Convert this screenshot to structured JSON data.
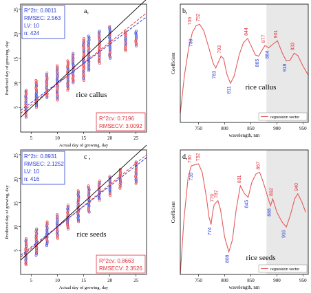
{
  "colors": {
    "red": "#e0303a",
    "blue": "#2a3fd4",
    "purple": "#7a3fa0",
    "curve": "#e45a5a",
    "black": "#000000",
    "shade": "#d9d9d9"
  },
  "chart_data": [
    {
      "type": "scatter",
      "panel_label": "a,",
      "xlabel": "Actual day of growing, day",
      "ylabel": "Predicted day of growing, day",
      "xlim": [
        3,
        27
      ],
      "ylim": [
        0,
        26
      ],
      "xticks": [
        "5",
        "10",
        "15",
        "20",
        "25"
      ],
      "yticks": [
        "5",
        "10",
        "15",
        "20",
        "25"
      ],
      "annotation": "rice callus",
      "stats_box": [
        "R^2tr: 0.8011",
        "RMSEC: 2.563",
        "LV: 10",
        "n: 424"
      ],
      "cv_box": [
        "R^2cv: 0.7196",
        "RMSECV: 3.0092"
      ],
      "columns": [
        {
          "x": 4,
          "ymin": 3.0,
          "ymax": 8.5
        },
        {
          "x": 6,
          "ymin": 5.0,
          "ymax": 10.5
        },
        {
          "x": 8,
          "ymin": 7.0,
          "ymax": 12.0
        },
        {
          "x": 10,
          "ymin": 6.5,
          "ymax": 13.5
        },
        {
          "x": 12,
          "ymin": 8.5,
          "ymax": 14.5
        },
        {
          "x": 13,
          "ymin": 10.0,
          "ymax": 16.0
        },
        {
          "x": 15,
          "ymin": 10.5,
          "ymax": 19.0
        },
        {
          "x": 16,
          "ymin": 12.5,
          "ymax": 19.5
        },
        {
          "x": 18,
          "ymin": 14.0,
          "ymax": 20.5
        },
        {
          "x": 20,
          "ymin": 15.0,
          "ymax": 21.5
        },
        {
          "x": 23,
          "ymin": 16.5,
          "ymax": 20.5
        },
        {
          "x": 25,
          "ymin": 17.5,
          "ymax": 20.5
        }
      ],
      "lines": {
        "ideal": [
          [
            3,
            3
          ],
          [
            27,
            27
          ]
        ],
        "fit_tr": [
          [
            3,
            3.8
          ],
          [
            27,
            24.2
          ]
        ],
        "fit_cv": [
          [
            3,
            4.4
          ],
          [
            27,
            23.4
          ]
        ]
      }
    },
    {
      "type": "line",
      "panel_label": "b,",
      "xlabel": "wavelength, nm",
      "ylabel": "Coefficient",
      "xlim": [
        715,
        960
      ],
      "ylim": [
        -1,
        1
      ],
      "xticks": [
        "750",
        "800",
        "850",
        "900",
        "950"
      ],
      "shaded_range": [
        880,
        960
      ],
      "annotation": "rice callus",
      "legend": "regression vector",
      "curve": [
        [
          715,
          -0.85
        ],
        [
          723,
          -0.2
        ],
        [
          731,
          0.25
        ],
        [
          738,
          0.52
        ],
        [
          745,
          0.63
        ],
        [
          752,
          0.66
        ],
        [
          760,
          0.55
        ],
        [
          770,
          0.25
        ],
        [
          778,
          0.0
        ],
        [
          783,
          -0.08
        ],
        [
          788,
          0.02
        ],
        [
          793,
          0.12
        ],
        [
          798,
          0.08
        ],
        [
          804,
          -0.18
        ],
        [
          811,
          -0.34
        ],
        [
          818,
          -0.22
        ],
        [
          828,
          0.15
        ],
        [
          836,
          0.35
        ],
        [
          844,
          0.42
        ],
        [
          852,
          0.27
        ],
        [
          859,
          0.14
        ],
        [
          865,
          0.12
        ],
        [
          870,
          0.2
        ],
        [
          877,
          0.3
        ],
        [
          884,
          0.26
        ],
        [
          892,
          0.32
        ],
        [
          901,
          0.38
        ],
        [
          910,
          0.18
        ],
        [
          918,
          0.04
        ],
        [
          925,
          0.05
        ],
        [
          933,
          0.17
        ],
        [
          940,
          0.13
        ],
        [
          950,
          -0.05
        ],
        [
          960,
          -0.2
        ]
      ],
      "peak_labels": [
        {
          "x": 736,
          "y": 0.6,
          "text": "736",
          "color": "red"
        },
        {
          "x": 752,
          "y": 0.66,
          "text": "752",
          "color": "red"
        },
        {
          "x": 738,
          "y": 0.46,
          "text": "738",
          "color": "blue"
        },
        {
          "x": 783,
          "y": -0.08,
          "text": "783",
          "color": "blue"
        },
        {
          "x": 793,
          "y": 0.12,
          "text": "793",
          "color": "red"
        },
        {
          "x": 811,
          "y": -0.34,
          "text": "811",
          "color": "blue"
        },
        {
          "x": 844,
          "y": 0.42,
          "text": "844",
          "color": "red"
        },
        {
          "x": 865,
          "y": 0.12,
          "text": "865",
          "color": "blue"
        },
        {
          "x": 877,
          "y": 0.3,
          "text": "877",
          "color": "red"
        },
        {
          "x": 884,
          "y": 0.26,
          "text": "884",
          "color": "blue"
        },
        {
          "x": 901,
          "y": 0.38,
          "text": "901",
          "color": "red"
        },
        {
          "x": 918,
          "y": 0.04,
          "text": "918",
          "color": "blue"
        },
        {
          "x": 933,
          "y": 0.17,
          "text": "933",
          "color": "red"
        }
      ]
    },
    {
      "type": "scatter",
      "panel_label": "c ,",
      "xlabel": "Actual day of growing, day",
      "ylabel": "Predicted day of growing, day",
      "xlim": [
        3,
        27
      ],
      "ylim": [
        0,
        26
      ],
      "xticks": [
        "5",
        "10",
        "15",
        "20",
        "25"
      ],
      "yticks": [
        "5",
        "10",
        "15",
        "20",
        "25"
      ],
      "annotation": "rice seeds",
      "stats_box": [
        "R^2tr: 0.8931",
        "RMSEC: 2.1252",
        "LV: 10",
        "n: 416"
      ],
      "cv_box": [
        "R^2cv: 0.8663",
        "RMSECV: 2.3526"
      ],
      "columns": [
        {
          "x": 4,
          "ymin": 2.0,
          "ymax": 7.5
        },
        {
          "x": 6,
          "ymin": 4.0,
          "ymax": 9.5
        },
        {
          "x": 8,
          "ymin": 6.0,
          "ymax": 11.0
        },
        {
          "x": 10,
          "ymin": 7.5,
          "ymax": 12.5
        },
        {
          "x": 12,
          "ymin": 9.5,
          "ymax": 14.5
        },
        {
          "x": 14,
          "ymin": 11.0,
          "ymax": 17.5
        },
        {
          "x": 16,
          "ymin": 13.0,
          "ymax": 18.5
        },
        {
          "x": 18,
          "ymin": 15.5,
          "ymax": 19.5
        },
        {
          "x": 20,
          "ymin": 16.5,
          "ymax": 20.5
        },
        {
          "x": 22,
          "ymin": 18.0,
          "ymax": 22.0
        },
        {
          "x": 25,
          "ymin": 19.0,
          "ymax": 23.5
        }
      ],
      "lines": {
        "ideal": [
          [
            3,
            3
          ],
          [
            27,
            27
          ]
        ],
        "fit_tr": [
          [
            3,
            3.6
          ],
          [
            27,
            25.0
          ]
        ],
        "fit_cv": [
          [
            3,
            4.0
          ],
          [
            27,
            24.4
          ]
        ]
      }
    },
    {
      "type": "line",
      "panel_label": "d,",
      "xlabel": "wavelength, nm",
      "ylabel": "Coefficient",
      "xlim": [
        715,
        960
      ],
      "ylim": [
        -1.5,
        1
      ],
      "xticks": [
        "750",
        "800",
        "850",
        "900",
        "950"
      ],
      "shaded_range": [
        880,
        960
      ],
      "annotation": "rice seeds",
      "legend": "regression vector",
      "curve": [
        [
          715,
          -1.5
        ],
        [
          722,
          -0.4
        ],
        [
          730,
          0.45
        ],
        [
          736,
          0.68
        ],
        [
          742,
          0.7
        ],
        [
          750,
          0.72
        ],
        [
          757,
          0.55
        ],
        [
          765,
          0.05
        ],
        [
          770,
          -0.35
        ],
        [
          774,
          -0.5
        ],
        [
          777,
          -0.25
        ],
        [
          780,
          -0.1
        ],
        [
          784,
          -0.05
        ],
        [
          787,
          -0.02
        ],
        [
          792,
          -0.2
        ],
        [
          800,
          -0.75
        ],
        [
          808,
          -1.05
        ],
        [
          815,
          -0.8
        ],
        [
          822,
          -0.2
        ],
        [
          830,
          0.28
        ],
        [
          838,
          0.12
        ],
        [
          845,
          0.05
        ],
        [
          852,
          0.35
        ],
        [
          860,
          0.52
        ],
        [
          867,
          0.55
        ],
        [
          874,
          0.35
        ],
        [
          884,
          0.0
        ],
        [
          888,
          -0.12
        ],
        [
          892,
          0.02
        ],
        [
          900,
          -0.25
        ],
        [
          910,
          -0.45
        ],
        [
          918,
          -0.55
        ],
        [
          926,
          -0.3
        ],
        [
          934,
          0.02
        ],
        [
          940,
          0.12
        ],
        [
          948,
          -0.05
        ],
        [
          955,
          -0.25
        ]
      ],
      "peak_labels": [
        {
          "x": 736,
          "y": 0.68,
          "text": "736",
          "color": "red"
        },
        {
          "x": 752,
          "y": 0.72,
          "text": "752",
          "color": "red"
        },
        {
          "x": 739,
          "y": 0.6,
          "text": "739",
          "color": "blue"
        },
        {
          "x": 774,
          "y": -0.5,
          "text": "774",
          "color": "blue"
        },
        {
          "x": 779,
          "y": -0.1,
          "text": "779",
          "color": "red"
        },
        {
          "x": 787,
          "y": -0.02,
          "text": "787",
          "color": "red"
        },
        {
          "x": 808,
          "y": -1.05,
          "text": "808",
          "color": "blue"
        },
        {
          "x": 831,
          "y": 0.28,
          "text": "831",
          "color": "red"
        },
        {
          "x": 845,
          "y": 0.05,
          "text": "845",
          "color": "blue"
        },
        {
          "x": 867,
          "y": 0.55,
          "text": "867",
          "color": "red"
        },
        {
          "x": 888,
          "y": -0.12,
          "text": "888",
          "color": "blue"
        },
        {
          "x": 892,
          "y": 0.02,
          "text": "892",
          "color": "red"
        },
        {
          "x": 916,
          "y": -0.55,
          "text": "916",
          "color": "blue"
        },
        {
          "x": 940,
          "y": 0.12,
          "text": "940",
          "color": "red"
        }
      ]
    }
  ]
}
